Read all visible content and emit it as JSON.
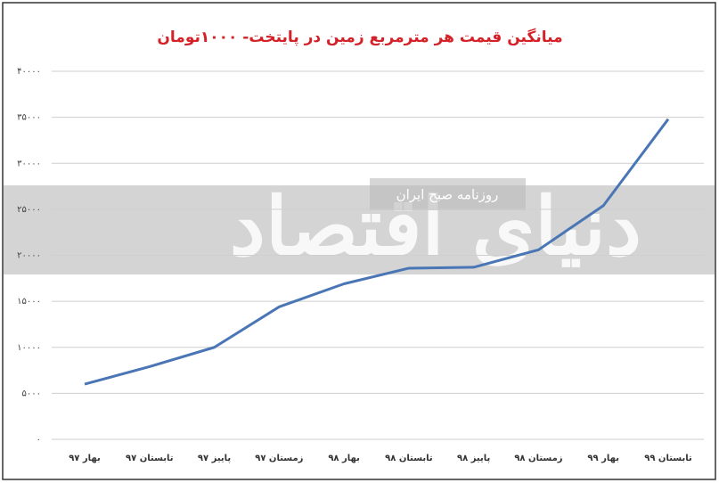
{
  "chart_data": {
    "type": "line",
    "title": "میانگین قیمت هر مترمربع زمین در پایتخت- ۱۰۰۰تومان",
    "watermark": "دنیای اقتصاد",
    "watermark_subtitle": "روزنامه صبح ایران",
    "categories": [
      "بهار ۹۷",
      "تابستان ۹۷",
      "پاییز ۹۷",
      "زمستان ۹۷",
      "بهار ۹۸",
      "تابستان ۹۸",
      "پاییز ۹۸",
      "زمستان ۹۸",
      "بهار ۹۹",
      "تابستان ۹۹"
    ],
    "series": [
      {
        "color": "#4a76b5",
        "values": [
          6000,
          7900,
          10000,
          14400,
          16900,
          18600,
          18700,
          20600,
          25400,
          34800
        ]
      }
    ],
    "ylim": [
      0,
      40000
    ],
    "yticks": [
      {
        "value": 0,
        "label": "۰"
      },
      {
        "value": 5000,
        "label": "۵۰۰۰"
      },
      {
        "value": 10000,
        "label": "۱۰۰۰۰"
      },
      {
        "value": 15000,
        "label": "۱۵۰۰۰"
      },
      {
        "value": 20000,
        "label": "۲۰۰۰۰"
      },
      {
        "value": 25000,
        "label": "۲۵۰۰۰"
      },
      {
        "value": 30000,
        "label": "۳۰۰۰۰"
      },
      {
        "value": 35000,
        "label": "۳۵۰۰۰"
      },
      {
        "value": 40000,
        "label": "۴۰۰۰۰"
      }
    ],
    "grid": true
  }
}
